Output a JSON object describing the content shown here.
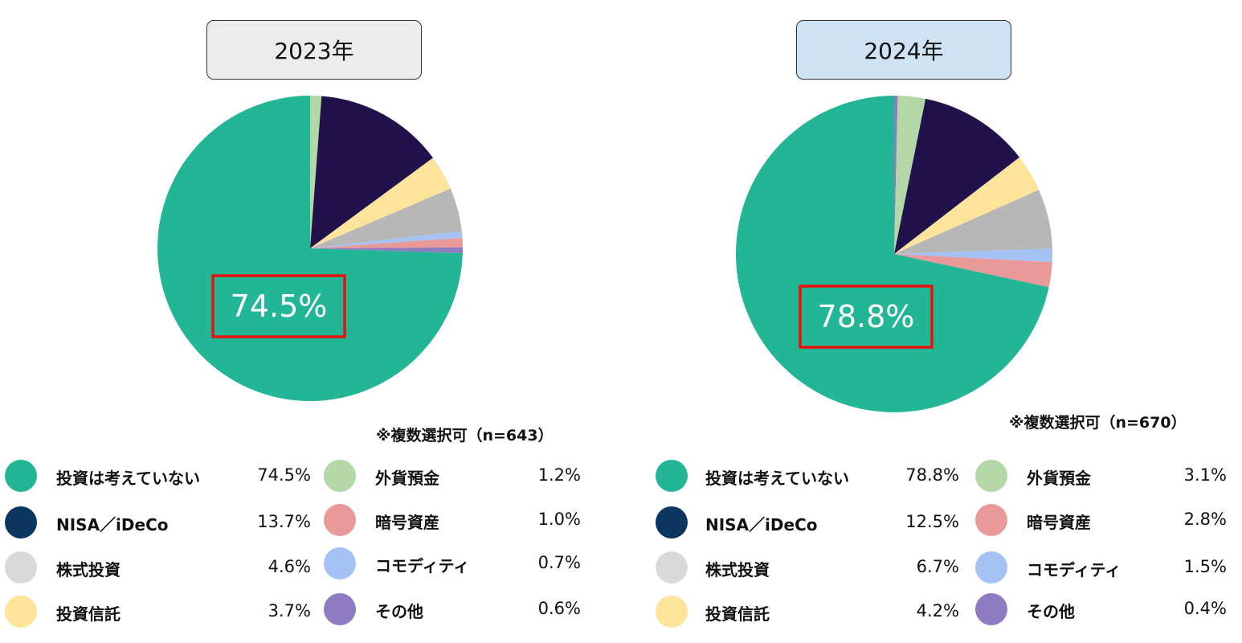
{
  "chart_data": [
    {
      "type": "pie",
      "title": "2023年",
      "title_bg": "#ececec",
      "note": "※複数選択可（n=643）",
      "highlight_label": "74.5%",
      "slices": [
        {
          "label": "外貨預金",
          "value": 1.2,
          "color": "#b4d7a8"
        },
        {
          "label": "NISA／iDeCo",
          "value": 13.7,
          "color": "#21124b"
        },
        {
          "label": "投資信託",
          "value": 3.7,
          "color": "#fde49a"
        },
        {
          "label": "株式投資",
          "value": 4.6,
          "color": "#b7b7b7"
        },
        {
          "label": "コモディティ",
          "value": 0.7,
          "color": "#a4c2f4"
        },
        {
          "label": "暗号資産",
          "value": 1.0,
          "color": "#ea9999"
        },
        {
          "label": "その他",
          "value": 0.6,
          "color": "#8e7cc3"
        },
        {
          "label": "投資は考えていない",
          "value": 74.5,
          "color": "#22b596"
        }
      ],
      "legend": [
        {
          "label": "投資は考えていない",
          "value": "74.5%",
          "color": "#22b596"
        },
        {
          "label": "NISA／iDeCo",
          "value": "13.7%",
          "color": "#0b3660"
        },
        {
          "label": "株式投資",
          "value": "4.6%",
          "color": "#d9d9d9"
        },
        {
          "label": "投資信託",
          "value": "3.7%",
          "color": "#fde49a"
        },
        {
          "label": "外貨預金",
          "value": "1.2%",
          "color": "#b4d7a8"
        },
        {
          "label": "暗号資産",
          "value": "1.0%",
          "color": "#ea9999"
        },
        {
          "label": "コモディティ",
          "value": "0.7%",
          "color": "#a4c2f4"
        },
        {
          "label": "その他",
          "value": "0.6%",
          "color": "#8e7cc3"
        }
      ]
    },
    {
      "type": "pie",
      "title": "2024年",
      "title_bg": "#cfe2f3",
      "note": "※複数選択可（n=670）",
      "highlight_label": "78.8%",
      "slices": [
        {
          "label": "その他",
          "value": 0.4,
          "color": "#8e7cc3"
        },
        {
          "label": "外貨預金",
          "value": 3.1,
          "color": "#b4d7a8"
        },
        {
          "label": "NISA／iDeCo",
          "value": 12.5,
          "color": "#21124b"
        },
        {
          "label": "投資信託",
          "value": 4.2,
          "color": "#fde49a"
        },
        {
          "label": "株式投資",
          "value": 6.7,
          "color": "#b7b7b7"
        },
        {
          "label": "コモディティ",
          "value": 1.5,
          "color": "#a4c2f4"
        },
        {
          "label": "暗号資産",
          "value": 2.8,
          "color": "#ea9999"
        },
        {
          "label": "投資は考えていない",
          "value": 78.8,
          "color": "#22b596"
        }
      ],
      "legend": [
        {
          "label": "投資は考えていない",
          "value": "78.8%",
          "color": "#22b596"
        },
        {
          "label": "NISA／iDeCo",
          "value": "12.5%",
          "color": "#0b3660"
        },
        {
          "label": "株式投資",
          "value": "6.7%",
          "color": "#d9d9d9"
        },
        {
          "label": "投資信託",
          "value": "4.2%",
          "color": "#fde49a"
        },
        {
          "label": "外貨預金",
          "value": "3.1%",
          "color": "#b4d7a8"
        },
        {
          "label": "暗号資産",
          "value": "2.8%",
          "color": "#ea9999"
        },
        {
          "label": "コモディティ",
          "value": "1.5%",
          "color": "#a4c2f4"
        },
        {
          "label": "その他",
          "value": "0.4%",
          "color": "#8e7cc3"
        }
      ]
    }
  ],
  "highlight_color": "#e8120c"
}
